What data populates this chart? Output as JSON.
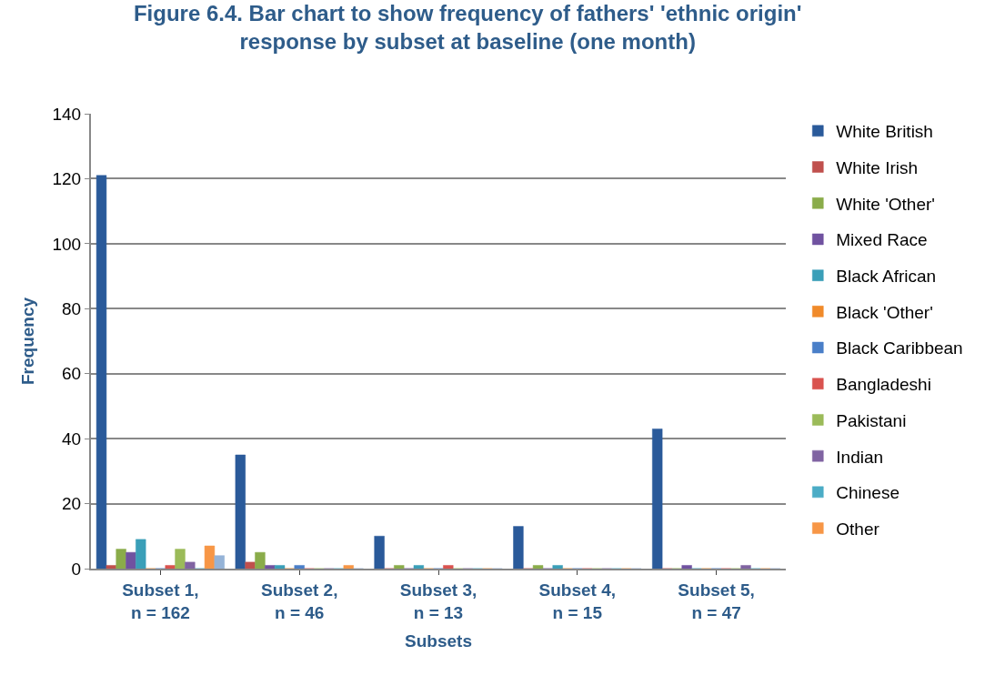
{
  "chart_data": {
    "type": "bar",
    "title": "Figure 6.4. Bar chart to show frequency of fathers' 'ethnic origin'\nresponse by subset at baseline (one month)",
    "xlabel": "Subsets",
    "ylabel": "Frequency",
    "categories": [
      "Subset 1,\nn = 162",
      "Subset 2,\nn = 46",
      "Subset 3,\nn = 13",
      "Subset 4,\nn = 15",
      "Subset 5,\nn = 47"
    ],
    "series": [
      {
        "name": "White British",
        "color": "#2a5a9a",
        "values": [
          121,
          35,
          10,
          13,
          43
        ]
      },
      {
        "name": "White Irish",
        "color": "#c0504d",
        "values": [
          1,
          2,
          0,
          0,
          0
        ]
      },
      {
        "name": "White 'Other'",
        "color": "#8aac4a",
        "values": [
          6,
          5,
          1,
          1,
          0
        ]
      },
      {
        "name": "Mixed Race",
        "color": "#7052a0",
        "values": [
          5,
          1,
          0,
          0,
          1
        ]
      },
      {
        "name": "Black African",
        "color": "#3a9fb8",
        "values": [
          9,
          1,
          1,
          1,
          0
        ]
      },
      {
        "name": "Black 'Other'",
        "color": "#f08a2a",
        "values": [
          0,
          0,
          0,
          0,
          0
        ]
      },
      {
        "name": "Black Caribbean",
        "color": "#4a7fc8",
        "values": [
          0,
          1,
          0,
          0,
          0
        ]
      },
      {
        "name": "Bangladeshi",
        "color": "#d9534f",
        "values": [
          1,
          0,
          1,
          0,
          0
        ]
      },
      {
        "name": "Pakistani",
        "color": "#9bbb59",
        "values": [
          6,
          0,
          0,
          0,
          0
        ]
      },
      {
        "name": "Indian",
        "color": "#8064a2",
        "values": [
          2,
          0,
          0,
          0,
          1
        ]
      },
      {
        "name": "Chinese",
        "color": "#4bacc6",
        "values": [
          0,
          0,
          0,
          0,
          0
        ]
      },
      {
        "name": "Other",
        "color": "#f79646",
        "values": [
          7,
          1,
          0,
          0,
          0
        ]
      },
      {
        "color": "#95b3d7",
        "values": [
          4,
          0,
          0,
          0,
          0
        ]
      }
    ],
    "ylim": [
      0,
      140
    ],
    "yticks": [
      0,
      20,
      40,
      60,
      80,
      100,
      120,
      140
    ],
    "grid": "y",
    "legend": "right"
  }
}
